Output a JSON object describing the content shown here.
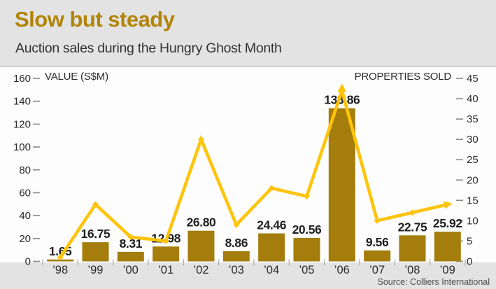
{
  "header": {
    "title": "Slow but steady",
    "subtitle": "Auction sales during the Hungry Ghost Month"
  },
  "footer": {
    "source": "Source: Colliers International"
  },
  "colors": {
    "title_gold": "#b18408",
    "bar_gold": "#a47d0c",
    "line_yellow": "#fdc40b",
    "text_dark": "#1f1f1f",
    "axis_text": "#2b2b2b",
    "tick_dash": "#8a8a8a",
    "baseline_tick": "#b5b5b5",
    "background": "#e3e3e3",
    "plot_bg": "#fdfdfd"
  },
  "chart_data": {
    "type": "bar",
    "subtype": "bar-line-combo",
    "categories": [
      "’98",
      "’99",
      "’00",
      "’01",
      "’02",
      "’03",
      "’04",
      "’05",
      "’06",
      "’07",
      "’08",
      "’09"
    ],
    "series": [
      {
        "name": "VALUE (S$M)",
        "type": "bar",
        "axis": "left",
        "color": "#a47d0c",
        "values": [
          1.65,
          16.75,
          8.31,
          12.98,
          26.8,
          8.86,
          24.46,
          20.56,
          133.86,
          9.56,
          22.75,
          25.92
        ],
        "labels": [
          "1.65",
          "16.75",
          "8.31",
          "12.98",
          "26.80",
          "8.86",
          "24.46",
          "20.56",
          "133.86",
          "9.56",
          "22.75",
          "25.92"
        ]
      },
      {
        "name": "PROPERTIES SOLD",
        "type": "line",
        "axis": "right",
        "color": "#fdc40b",
        "values": [
          1,
          14,
          6,
          5,
          30,
          9,
          18,
          16,
          42,
          10,
          12,
          14
        ]
      }
    ],
    "left_axis": {
      "title": "VALUE (S$M)",
      "min": 0,
      "max": 160,
      "step": 20
    },
    "right_axis": {
      "title": "PROPERTIES SOLD",
      "min": 0,
      "max": 45,
      "step": 5
    },
    "grid": false,
    "legend_position": "none",
    "annotations": [
      "up-arrow marker at 2006 line peak",
      "arrowhead at end of line (2009)"
    ]
  }
}
